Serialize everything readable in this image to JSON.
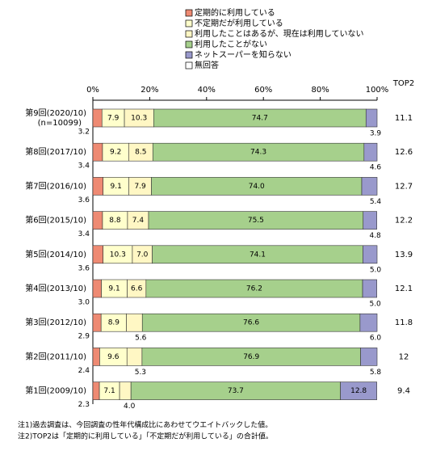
{
  "chart_data": {
    "type": "stacked-bar-horizontal",
    "categories": [
      "第9回(2020/10)",
      "第8回(2017/10)",
      "第7回(2016/10)",
      "第6回(2015/10)",
      "第5回(2014/10)",
      "第4回(2013/10)",
      "第3回(2012/10)",
      "第2回(2011/10)",
      "第1回(2009/10)"
    ],
    "sample_note": "(n=10099)",
    "xlim": [
      0,
      100
    ],
    "xticks": [
      {
        "value": 0,
        "label": "0%"
      },
      {
        "value": 20,
        "label": "20%"
      },
      {
        "value": 40,
        "label": "40%"
      },
      {
        "value": 60,
        "label": "60%"
      },
      {
        "value": 80,
        "label": "80%"
      },
      {
        "value": 100,
        "label": "100%"
      }
    ],
    "series": [
      {
        "name": "定期的に利用している",
        "color": "#ee8a73",
        "values": [
          3.2,
          3.4,
          3.6,
          3.4,
          3.6,
          3.0,
          2.9,
          2.4,
          2.3
        ],
        "value_labels": [
          "3.2",
          "3.4",
          "3.6",
          "3.4",
          "3.6",
          "3.0",
          "2.9",
          "2.4",
          "2.3"
        ]
      },
      {
        "name": "不定期だが利用している",
        "color": "#ffffcc",
        "values": [
          7.9,
          9.2,
          9.1,
          8.8,
          10.3,
          9.1,
          8.9,
          9.6,
          7.1
        ],
        "value_labels": [
          "7.9",
          "9.2",
          "9.1",
          "8.8",
          "10.3",
          "9.1",
          "8.9",
          "9.6",
          "7.1"
        ]
      },
      {
        "name": "利用したことはあるが、現在は利用していない",
        "color": "#fff7c4",
        "values": [
          10.3,
          8.5,
          7.9,
          7.4,
          7.0,
          6.6,
          5.6,
          5.3,
          4.0
        ],
        "value_labels": [
          "10.3",
          "8.5",
          "7.9",
          "7.4",
          "7.0",
          "6.6",
          "5.6",
          "5.3",
          "4.0"
        ]
      },
      {
        "name": "利用したことがない",
        "color": "#a6d08c",
        "values": [
          74.7,
          74.3,
          74.0,
          75.5,
          74.1,
          76.2,
          76.6,
          76.9,
          73.7
        ],
        "value_labels": [
          "74.7",
          "74.3",
          "74.0",
          "75.5",
          "74.1",
          "76.2",
          "76.6",
          "76.9",
          "73.7"
        ]
      },
      {
        "name": "ネットスーパーを知らない",
        "color": "#9999cc",
        "values": [
          3.9,
          4.6,
          5.4,
          4.8,
          5.0,
          5.0,
          6.0,
          5.8,
          12.8
        ],
        "value_labels": [
          "3.9",
          "4.6",
          "5.4",
          "4.8",
          "5.0",
          "5.0",
          "6.0",
          "5.8",
          "12.8"
        ]
      },
      {
        "name": "無回答",
        "color": "#ffffff",
        "values": [
          0,
          0,
          0,
          0,
          0,
          0,
          0,
          0,
          0
        ]
      }
    ],
    "top2": {
      "label": "TOP2",
      "values": [
        11.1,
        12.6,
        12.7,
        12.2,
        13.9,
        12.1,
        11.8,
        12.0,
        9.4
      ]
    },
    "notes": [
      "注1)過去調査は、今回調査の性年代構成比にあわせてウエイトバックした値。",
      "注2)TOP2は「定期的に利用している」「不定期だが利用している」の合計値。"
    ]
  }
}
